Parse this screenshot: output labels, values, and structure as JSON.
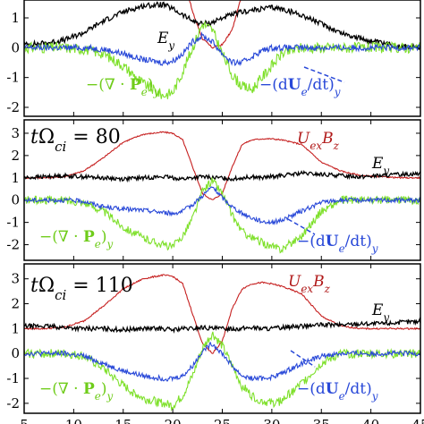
{
  "chart_data": [
    {
      "type": "line",
      "time_label": "",
      "x": [
        5,
        7,
        9,
        11,
        13,
        15,
        17,
        19,
        20,
        21,
        22,
        23,
        24,
        25,
        26,
        27,
        28,
        29,
        30,
        31,
        33,
        35,
        37,
        39,
        41,
        43,
        45
      ],
      "ylim": [
        -2.3,
        2.5
      ],
      "yticks": [
        "-2",
        "-1",
        "0",
        "1",
        "2"
      ],
      "series": [
        {
          "name": "U_ex B_z",
          "color": "#c62020",
          "values": [
            null,
            null,
            null,
            null,
            null,
            null,
            null,
            2.2,
            2.4,
            2.5,
            1.2,
            0.3,
            0.0,
            0.1,
            0.6,
            1.8,
            2.3,
            2.5,
            2.5,
            2.2,
            null,
            null,
            null,
            null,
            null,
            null,
            null
          ]
        },
        {
          "name": "E_y",
          "color": "#000000",
          "values": [
            0.1,
            0.15,
            0.25,
            0.5,
            0.9,
            1.2,
            1.4,
            1.45,
            1.3,
            1.1,
            0.9,
            0.8,
            0.85,
            1.0,
            1.1,
            1.2,
            1.25,
            1.3,
            1.35,
            1.3,
            1.1,
            0.8,
            0.5,
            0.3,
            0.15,
            0.05,
            0.0
          ]
        },
        {
          "name": "-(∇·P_e)_y",
          "color": "#7ee02a",
          "values": [
            0,
            0,
            0,
            -0.05,
            -0.2,
            -0.6,
            -1.2,
            -1.6,
            -1.5,
            -0.8,
            0,
            0.8,
            0.6,
            -0.2,
            -0.9,
            -1.3,
            -1.4,
            -1.0,
            -0.6,
            -0.2,
            0,
            0,
            0,
            0,
            0,
            0,
            0
          ]
        },
        {
          "name": "-(dU_e/dt)_y",
          "color": "#2848d8",
          "values": [
            0,
            0,
            0,
            0,
            -0.05,
            -0.2,
            -0.4,
            -0.5,
            -0.45,
            -0.2,
            0.2,
            0.4,
            0.2,
            -0.2,
            -0.5,
            -0.5,
            -0.3,
            -0.1,
            0,
            0,
            0,
            0,
            0,
            0,
            0,
            0,
            0
          ]
        }
      ],
      "labels": {
        "E": "E",
        "E_sub": "y",
        "P_pre": "−(∇ · ",
        "P_bold": "P",
        "P_sub_e": "e",
        "P_post": ")",
        "P_sub_y": "y",
        "U_pre": "−(d",
        "U_bold": "U",
        "U_sub_e": "e",
        "U_post": "/dt)",
        "U_sub_y": "y"
      }
    },
    {
      "type": "line",
      "time_label_prefix": "t",
      "time_label_omega": "Ω",
      "time_label_sub": "ci",
      "time_label_value": " = 80",
      "x": [
        5,
        7,
        9,
        11,
        13,
        15,
        17,
        19,
        20,
        21,
        22,
        23,
        24,
        25,
        26,
        27,
        28,
        29,
        30,
        31,
        33,
        35,
        37,
        39,
        41,
        43,
        45
      ],
      "ylim": [
        -2.7,
        3.6
      ],
      "yticks": [
        "-2",
        "-1",
        "0",
        "1",
        "2",
        "3"
      ],
      "series": [
        {
          "name": "U_ex B_z",
          "color": "#c62020",
          "values": [
            1.0,
            1.0,
            1.05,
            1.3,
            1.9,
            2.6,
            2.95,
            3.05,
            3.0,
            2.7,
            1.5,
            0.3,
            0.0,
            0.3,
            1.5,
            2.5,
            2.7,
            2.75,
            2.75,
            2.7,
            2.5,
            1.7,
            1.3,
            1.1,
            1.05,
            1.0,
            1.0
          ]
        },
        {
          "name": "E_y",
          "color": "#000000",
          "values": [
            1.0,
            1.05,
            1.1,
            1.05,
            1.0,
            0.95,
            1.0,
            1.05,
            1.0,
            0.95,
            1.0,
            1.05,
            1.0,
            1.0,
            0.95,
            1.0,
            1.05,
            1.0,
            1.05,
            1.1,
            1.2,
            1.15,
            1.1,
            1.05,
            1.1,
            1.15,
            1.2
          ]
        },
        {
          "name": "-(∇·P_e)_y",
          "color": "#7ee02a",
          "values": [
            0,
            0,
            0,
            -0.1,
            -0.5,
            -1.2,
            -1.7,
            -2.0,
            -2.1,
            -1.6,
            -0.8,
            0.4,
            0.9,
            0.3,
            -0.7,
            -1.4,
            -1.7,
            -1.9,
            -2.1,
            -2.2,
            -1.6,
            -0.5,
            0,
            0,
            0,
            0,
            0
          ]
        },
        {
          "name": "-(dU_e/dt)_y",
          "color": "#2848d8",
          "values": [
            0,
            0,
            0,
            -0.05,
            -0.3,
            -0.4,
            -0.45,
            -0.55,
            -0.6,
            -0.5,
            -0.2,
            0.2,
            0.6,
            0.1,
            -0.3,
            -0.6,
            -0.8,
            -0.95,
            -1.0,
            -0.9,
            -0.5,
            -0.1,
            0,
            0,
            0,
            0,
            0
          ]
        }
      ],
      "labels": {
        "U_name": "U",
        "U_sub": "ex",
        "B_name": "B",
        "B_sub": "z",
        "E": "E",
        "E_sub": "y",
        "P_pre": "−(∇ · ",
        "P_bold": "P",
        "P_sub_e": "e",
        "P_post": ")",
        "P_sub_y": "y",
        "U_pre": "−(d",
        "U_bold": "U",
        "U_sub_e": "e",
        "U_post": "/dt)",
        "U_sub_y": "y"
      }
    },
    {
      "type": "line",
      "time_label_prefix": "t",
      "time_label_omega": "Ω",
      "time_label_sub": "ci",
      "time_label_value": " = 110",
      "x": [
        5,
        7,
        9,
        11,
        13,
        15,
        17,
        19,
        20,
        21,
        22,
        23,
        24,
        25,
        26,
        27,
        28,
        29,
        30,
        31,
        33,
        35,
        37,
        39,
        41,
        43,
        45
      ],
      "ylim": [
        -2.4,
        3.6
      ],
      "yticks": [
        "-2",
        "-1",
        "0",
        "1",
        "2",
        "3"
      ],
      "series": [
        {
          "name": "U_ex B_z",
          "color": "#c62020",
          "values": [
            1.0,
            1.0,
            1.05,
            1.3,
            1.9,
            2.6,
            3.0,
            3.15,
            3.1,
            2.8,
            1.6,
            0.4,
            0.0,
            0.5,
            1.8,
            2.6,
            2.8,
            2.85,
            2.8,
            2.7,
            2.4,
            1.5,
            1.1,
            1.0,
            1.0,
            1.0,
            1.0
          ]
        },
        {
          "name": "E_y",
          "color": "#000000",
          "values": [
            1.1,
            1.1,
            1.05,
            1.0,
            1.0,
            0.95,
            1.0,
            1.0,
            0.95,
            1.0,
            1.0,
            1.05,
            1.0,
            1.0,
            1.0,
            1.0,
            1.05,
            1.0,
            1.0,
            1.05,
            1.1,
            1.15,
            1.15,
            1.2,
            1.2,
            1.25,
            1.3
          ]
        },
        {
          "name": "-(∇·P_e)_y",
          "color": "#7ee02a",
          "values": [
            0,
            0,
            0,
            -0.1,
            -0.6,
            -1.3,
            -1.8,
            -2.0,
            -2.1,
            -1.7,
            -0.9,
            0.2,
            0.8,
            0.3,
            -0.5,
            -1.3,
            -1.7,
            -1.9,
            -2.0,
            -1.9,
            -1.2,
            -0.4,
            0,
            0,
            0,
            0,
            0
          ]
        },
        {
          "name": "-(dU_e/dt)_y",
          "color": "#2848d8",
          "values": [
            0,
            0,
            0,
            -0.1,
            -0.4,
            -0.7,
            -0.9,
            -1.0,
            -1.0,
            -0.9,
            -0.5,
            0.1,
            0.4,
            0.0,
            -0.5,
            -0.9,
            -1.0,
            -1.0,
            -0.95,
            -0.8,
            -0.4,
            -0.1,
            0,
            0,
            0,
            0,
            0
          ]
        }
      ],
      "labels": {
        "U_name": "U",
        "U_sub": "ex",
        "B_name": "B",
        "B_sub": "z",
        "E": "E",
        "E_sub": "y",
        "P_pre": "−(∇ · ",
        "P_bold": "P",
        "P_sub_e": "e",
        "P_post": ")",
        "P_sub_y": "y",
        "U_pre": "−(d",
        "U_bold": "U",
        "U_sub_e": "e",
        "U_post": "/dt)",
        "U_sub_y": "y"
      }
    }
  ],
  "x_ticks": [
    "5",
    "10",
    "15",
    "20",
    "25",
    "30",
    "35",
    "40",
    "45"
  ],
  "x_tick_values": [
    5,
    10,
    15,
    20,
    25,
    30,
    35,
    40,
    45
  ]
}
